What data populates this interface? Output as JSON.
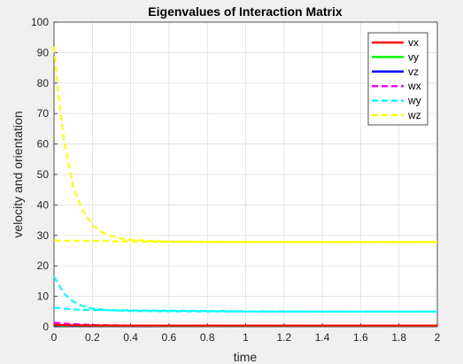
{
  "chart_data": {
    "type": "line",
    "title": "Eigenvalues of Interaction Matrix",
    "xlabel": "time",
    "ylabel": "velocity and orientation",
    "xlim": [
      0,
      2
    ],
    "ylim": [
      0,
      100
    ],
    "xticks": [
      0,
      0.2,
      0.4,
      0.6,
      0.8,
      1,
      1.2,
      1.4,
      1.6,
      1.8,
      2
    ],
    "xtick_labels": [
      "0",
      "0.2",
      "0.4",
      "0.6",
      "0.8",
      "1",
      "1.2",
      "1.4",
      "1.6",
      "1.8",
      "2"
    ],
    "yticks": [
      0,
      10,
      20,
      30,
      40,
      50,
      60,
      70,
      80,
      90,
      100
    ],
    "ytick_labels": [
      "0",
      "10",
      "20",
      "30",
      "40",
      "50",
      "60",
      "70",
      "80",
      "90",
      "100"
    ],
    "grid": true,
    "legend_position": "top-right",
    "series": [
      {
        "name": "vx",
        "color": "#ff0000",
        "style": "solid",
        "lines": [
          {
            "x": [
              0,
              0.05,
              0.1,
              0.2,
              0.4,
              0.6,
              1,
              1.5,
              2
            ],
            "y": [
              0.7,
              0.6,
              0.5,
              0.45,
              0.4,
              0.4,
              0.4,
              0.4,
              0.4
            ]
          }
        ]
      },
      {
        "name": "vy",
        "color": "#00ff00",
        "style": "solid",
        "lines": [
          {
            "x": [
              0,
              0.05,
              0.1,
              0.2,
              0.4,
              0.6,
              1,
              1.5,
              2
            ],
            "y": [
              0.6,
              0.5,
              0.45,
              0.4,
              0.35,
              0.3,
              0.3,
              0.3,
              0.3
            ]
          }
        ]
      },
      {
        "name": "vz",
        "color": "#0000ff",
        "style": "solid",
        "lines": [
          {
            "x": [
              0,
              0.05,
              0.1,
              0.2,
              0.4,
              0.6,
              1,
              1.5,
              2
            ],
            "y": [
              0.5,
              0.45,
              0.4,
              0.35,
              0.3,
              0.3,
              0.3,
              0.3,
              0.3
            ]
          }
        ]
      },
      {
        "name": "wx",
        "color": "#ff00ff",
        "style": "dashed",
        "lines": [
          {
            "x": [
              0,
              0.05,
              0.1,
              0.2,
              0.3,
              0.4,
              0.6,
              1,
              1.5,
              2
            ],
            "y": [
              1.4,
              1.1,
              0.9,
              0.6,
              0.5,
              0.4,
              0.3,
              0.3,
              0.3,
              0.3
            ]
          }
        ]
      },
      {
        "name": "wy",
        "color": "#00ffff",
        "style": "dashed",
        "lines": [
          {
            "x": [
              0,
              0.05,
              0.1,
              0.15,
              0.2,
              0.3,
              0.4,
              0.6,
              1,
              1.5,
              2
            ],
            "y": [
              16.5,
              11,
              8.3,
              6.8,
              6,
              5.4,
              5.2,
              5.1,
              5.0,
              5.0,
              5.0
            ]
          },
          {
            "x": [
              0,
              0.1,
              0.2,
              0.4,
              0.6,
              0.8,
              1,
              1.5,
              2
            ],
            "y": [
              6.3,
              5.7,
              5.5,
              5.4,
              5.3,
              5.2,
              5.1,
              5.0,
              5.0
            ]
          }
        ]
      },
      {
        "name": "wz",
        "color": "#ffff00",
        "style": "dashed",
        "lines": [
          {
            "x": [
              0,
              0.02,
              0.05,
              0.1,
              0.15,
              0.2,
              0.25,
              0.3,
              0.35,
              0.4,
              0.5,
              0.6,
              0.8,
              1,
              1.5,
              2
            ],
            "y": [
              92,
              78,
              62,
              46,
              38,
              33.5,
              31,
              29.8,
              29,
              28.6,
              28.2,
              28.0,
              27.9,
              27.9,
              27.8,
              27.8
            ]
          },
          {
            "x": [
              0,
              0.2,
              0.4,
              0.6,
              1,
              1.5,
              2
            ],
            "y": [
              28.3,
              28.2,
              28.0,
              27.9,
              27.8,
              27.8,
              27.8
            ]
          }
        ]
      }
    ]
  }
}
